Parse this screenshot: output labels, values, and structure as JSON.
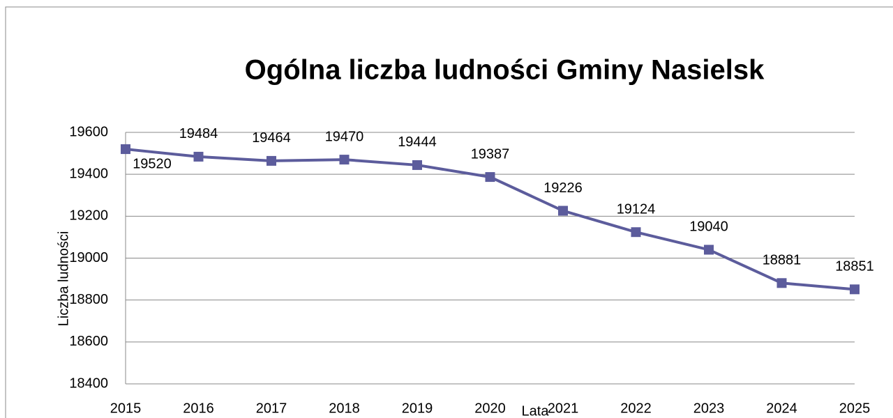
{
  "chart_data": {
    "type": "line",
    "title": "Ogólna liczba ludności Gminy Nasielsk",
    "x_label": "Lata",
    "y_label": "Liczba ludności",
    "x": [
      2015,
      2016,
      2017,
      2018,
      2019,
      2020,
      2021,
      2022,
      2023,
      2024,
      2025
    ],
    "xlim": [
      2015,
      2025
    ],
    "xticks": [
      2015,
      2016,
      2017,
      2018,
      2019,
      2020,
      2021,
      2022,
      2023,
      2024,
      2025
    ],
    "series": [
      {
        "name": "Liczba ludności",
        "color": "#5c5c9c",
        "values": [
          19520,
          19484,
          19464,
          19470,
          19444,
          19387,
          19226,
          19124,
          19040,
          18881,
          18851
        ]
      }
    ],
    "ylim": [
      18400,
      19600
    ],
    "yticks": [
      18400,
      18600,
      18800,
      19000,
      19200,
      19400,
      19600
    ],
    "grid": true
  }
}
